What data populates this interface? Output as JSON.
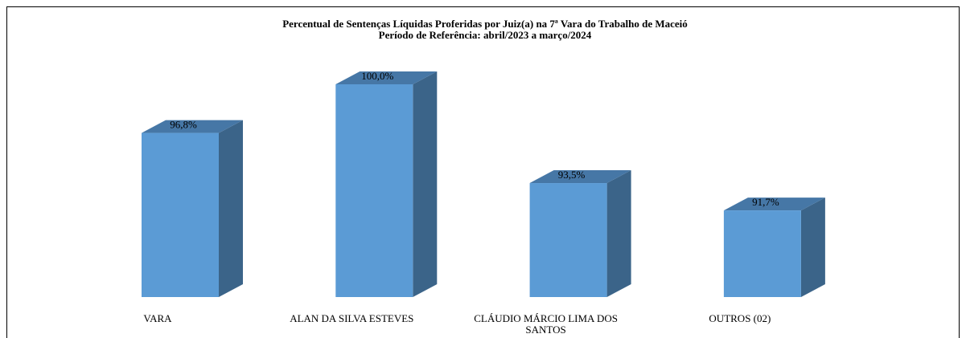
{
  "chart_data": {
    "type": "bar3d",
    "title": "Percentual de Sentenças Líquidas Proferidas por Juiz(a) na 7ª Vara do Trabalho de Maceió",
    "subtitle": "Período de Referência: abril/2023 a março/2024",
    "categories": [
      "VARA",
      "ALAN DA SILVA ESTEVES",
      "CLÁUDIO MÁRCIO LIMA DOS SANTOS",
      "OUTROS (02)"
    ],
    "values": [
      96.8,
      100.0,
      93.5,
      91.7
    ],
    "value_labels": [
      "96,8%",
      "100,0%",
      "93,5%",
      "91,7%"
    ],
    "color": "#5b9bd5",
    "ylim": [
      86,
      100
    ]
  }
}
